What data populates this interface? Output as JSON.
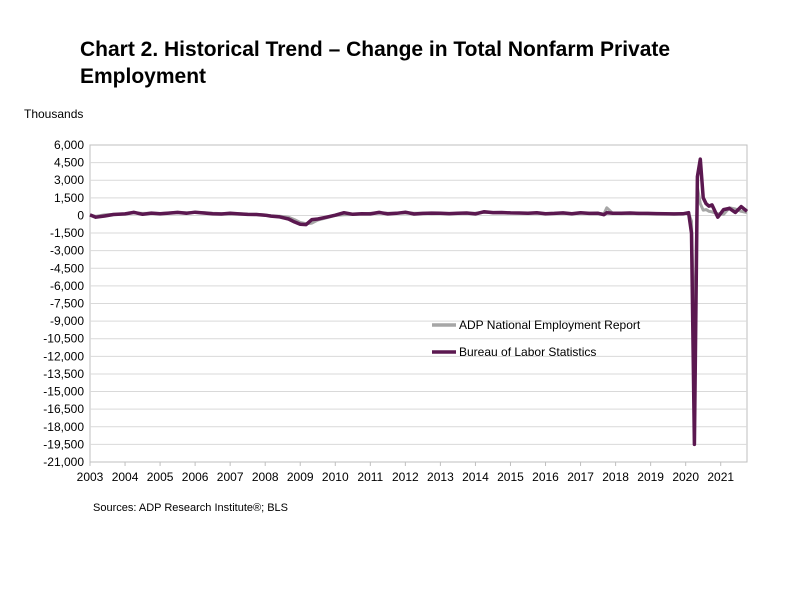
{
  "title": "Chart 2. Historical Trend – Change in Total Nonfarm Private Employment",
  "unit_label": "Thousands",
  "source": "Sources: ADP Research Institute®; BLS",
  "colors": {
    "adp": "#a6a6a6",
    "bls": "#5b1850",
    "grid": "#d9d9d9",
    "axis": "#bfbfbf"
  },
  "chart_data": {
    "type": "line",
    "title": "Chart 2. Historical Trend – Change in Total Nonfarm Private Employment",
    "ylabel": "Thousands",
    "xlabel": "",
    "ylim": [
      -21000,
      6000
    ],
    "yticks": [
      6000,
      4500,
      3000,
      1500,
      0,
      -1500,
      -3000,
      -4500,
      -6000,
      -7500,
      -9000,
      -10500,
      -12000,
      -13500,
      -15000,
      -16500,
      -18000,
      -19500,
      -21000
    ],
    "ytick_labels": [
      "6,000",
      "4,500",
      "3,000",
      "1,500",
      "0",
      "-1,500",
      "-3,000",
      "-4,500",
      "-6,000",
      "-7,500",
      "-9,000",
      "-10,500",
      "-12,000",
      "-13,500",
      "-15,000",
      "-16,500",
      "-18,000",
      "-19,500",
      "-21,000"
    ],
    "xlim": [
      "2003-01",
      "2021-10"
    ],
    "xticks": [
      "2003",
      "2004",
      "2005",
      "2006",
      "2007",
      "2008",
      "2009",
      "2010",
      "2011",
      "2012",
      "2013",
      "2014",
      "2015",
      "2016",
      "2017",
      "2018",
      "2019",
      "2020",
      "2021"
    ],
    "grid": true,
    "legend_position": "center-right",
    "series": [
      {
        "name": "ADP National Employment Report",
        "color": "#a6a6a6",
        "x": [
          "2003-01",
          "2003-03",
          "2003-06",
          "2003-09",
          "2004-01",
          "2004-04",
          "2004-07",
          "2004-10",
          "2005-01",
          "2005-04",
          "2005-07",
          "2005-10",
          "2006-01",
          "2006-04",
          "2006-07",
          "2006-10",
          "2007-01",
          "2007-04",
          "2007-07",
          "2007-10",
          "2008-01",
          "2008-03",
          "2008-06",
          "2008-09",
          "2008-11",
          "2009-01",
          "2009-03",
          "2009-05",
          "2009-07",
          "2009-10",
          "2010-01",
          "2010-04",
          "2010-07",
          "2010-10",
          "2011-01",
          "2011-04",
          "2011-07",
          "2011-10",
          "2012-01",
          "2012-04",
          "2012-07",
          "2012-10",
          "2013-01",
          "2013-04",
          "2013-07",
          "2013-10",
          "2014-01",
          "2014-04",
          "2014-07",
          "2014-10",
          "2015-01",
          "2015-04",
          "2015-07",
          "2015-10",
          "2016-01",
          "2016-04",
          "2016-07",
          "2016-10",
          "2017-01",
          "2017-04",
          "2017-07",
          "2017-09",
          "2017-10",
          "2017-12",
          "2018-03",
          "2018-06",
          "2018-09",
          "2018-12",
          "2019-03",
          "2019-06",
          "2019-09",
          "2019-12",
          "2020-02",
          "2020-03",
          "2020-04",
          "2020-05",
          "2020-06",
          "2020-07",
          "2020-08",
          "2020-09",
          "2020-10",
          "2020-12",
          "2021-02",
          "2021-04",
          "2021-06",
          "2021-08",
          "2021-10"
        ],
        "y": [
          20,
          -80,
          50,
          90,
          130,
          220,
          170,
          180,
          160,
          210,
          240,
          230,
          260,
          240,
          180,
          160,
          120,
          140,
          110,
          90,
          40,
          -20,
          -70,
          -150,
          -350,
          -600,
          -700,
          -650,
          -400,
          -200,
          0,
          60,
          80,
          120,
          170,
          200,
          190,
          200,
          210,
          180,
          190,
          160,
          170,
          150,
          170,
          180,
          200,
          260,
          240,
          230,
          210,
          200,
          190,
          180,
          160,
          180,
          170,
          160,
          190,
          180,
          180,
          120,
          650,
          180,
          160,
          190,
          170,
          160,
          150,
          140,
          110,
          150,
          180,
          -500,
          -11500,
          2400,
          1000,
          450,
          500,
          350,
          300,
          150,
          100,
          650,
          550,
          350,
          250
        ]
      },
      {
        "name": "Bureau of Labor Statistics",
        "color": "#5b1850",
        "x": [
          "2003-01",
          "2003-03",
          "2003-06",
          "2003-09",
          "2004-01",
          "2004-04",
          "2004-07",
          "2004-10",
          "2005-01",
          "2005-04",
          "2005-07",
          "2005-10",
          "2006-01",
          "2006-04",
          "2006-07",
          "2006-10",
          "2007-01",
          "2007-04",
          "2007-07",
          "2007-10",
          "2008-01",
          "2008-03",
          "2008-06",
          "2008-09",
          "2008-11",
          "2009-01",
          "2009-03",
          "2009-05",
          "2009-07",
          "2009-10",
          "2010-01",
          "2010-04",
          "2010-07",
          "2010-10",
          "2011-01",
          "2011-04",
          "2011-07",
          "2011-10",
          "2012-01",
          "2012-04",
          "2012-07",
          "2012-10",
          "2013-01",
          "2013-04",
          "2013-07",
          "2013-10",
          "2014-01",
          "2014-04",
          "2014-07",
          "2014-10",
          "2015-01",
          "2015-04",
          "2015-07",
          "2015-10",
          "2016-01",
          "2016-04",
          "2016-07",
          "2016-10",
          "2017-01",
          "2017-04",
          "2017-07",
          "2017-09",
          "2017-10",
          "2017-12",
          "2018-03",
          "2018-06",
          "2018-09",
          "2018-12",
          "2019-03",
          "2019-06",
          "2019-09",
          "2019-12",
          "2020-02",
          "2020-03",
          "2020-04",
          "2020-05",
          "2020-06",
          "2020-07",
          "2020-08",
          "2020-09",
          "2020-10",
          "2020-12",
          "2021-02",
          "2021-04",
          "2021-06",
          "2021-08",
          "2021-10"
        ],
        "y": [
          50,
          -150,
          -50,
          80,
          130,
          270,
          100,
          200,
          150,
          200,
          260,
          180,
          280,
          210,
          150,
          120,
          180,
          130,
          90,
          80,
          20,
          -60,
          -120,
          -300,
          -550,
          -750,
          -780,
          -350,
          -300,
          -150,
          20,
          230,
          100,
          150,
          130,
          260,
          130,
          180,
          280,
          120,
          170,
          200,
          180,
          160,
          190,
          210,
          130,
          320,
          240,
          250,
          220,
          210,
          190,
          230,
          150,
          170,
          220,
          150,
          230,
          170,
          180,
          60,
          230,
          190,
          180,
          210,
          170,
          170,
          160,
          150,
          130,
          140,
          230,
          -1500,
          -19500,
          3300,
          4800,
          1500,
          1000,
          800,
          900,
          -150,
          500,
          600,
          250,
          750,
          350
        ]
      }
    ]
  }
}
